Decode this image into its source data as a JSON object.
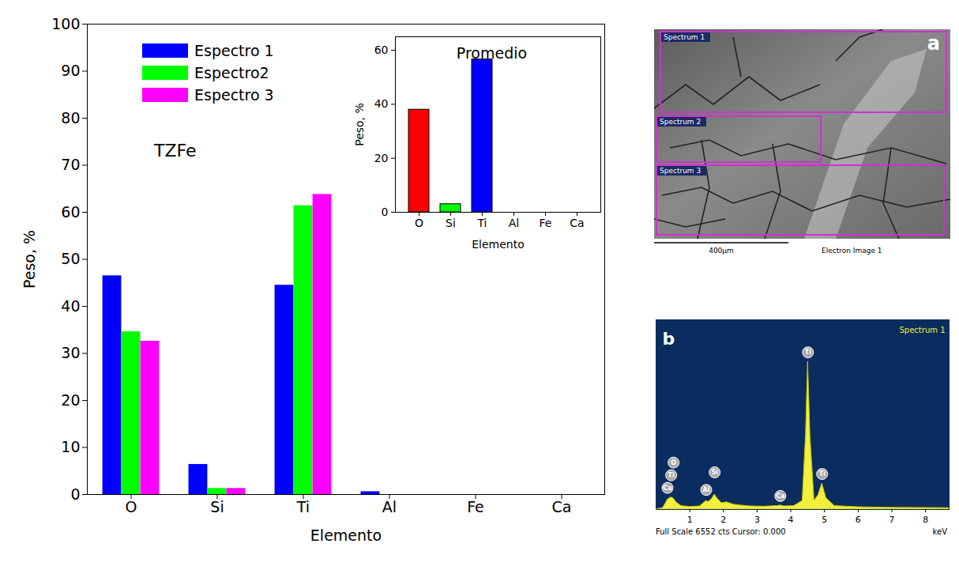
{
  "chart_data": [
    {
      "type": "bar",
      "annotation": "TZFe",
      "x_label": "Elemento",
      "y_label": "Peso, %",
      "categories": [
        "O",
        "Si",
        "Ti",
        "Al",
        "Fe",
        "Ca"
      ],
      "series": [
        {
          "name": "Espectro 1",
          "color": "#0000ff",
          "values": [
            46.5,
            6.4,
            44.5,
            0.6,
            0,
            0
          ]
        },
        {
          "name": "Espectro2",
          "color": "#00ff00",
          "values": [
            34.6,
            1.3,
            61.4,
            0,
            0,
            0
          ]
        },
        {
          "name": "Espectro 3",
          "color": "#ff00ff",
          "values": [
            32.6,
            1.3,
            63.8,
            0,
            0,
            0
          ]
        }
      ],
      "ylim": [
        0,
        100
      ],
      "yticks": [
        0,
        10,
        20,
        30,
        40,
        50,
        60,
        70,
        80,
        90,
        100
      ],
      "legend": "upper left"
    },
    {
      "type": "bar",
      "title": "Promedio",
      "x_label": "Elemento",
      "y_label": "Peso, %",
      "categories": [
        "O",
        "Si",
        "Ti",
        "Al",
        "Fe",
        "Ca"
      ],
      "values": [
        38,
        3,
        56.6,
        0,
        0,
        0
      ],
      "colors": [
        "#ff0000",
        "#00ff00",
        "#0000ff",
        "#000000",
        "#000000",
        "#000000"
      ],
      "ylim": [
        0,
        65
      ],
      "yticks": [
        0,
        20,
        40,
        60
      ]
    },
    {
      "type": "area",
      "panel": "b",
      "title": "Spectrum 1",
      "x_label": "keV",
      "footer": "Full Scale 6552 cts Cursor: 0.000",
      "x": [
        0,
        0.2,
        0.28,
        0.35,
        0.45,
        0.52,
        0.6,
        0.75,
        1.0,
        1.3,
        1.45,
        1.49,
        1.55,
        1.65,
        1.74,
        1.82,
        1.95,
        2.1,
        2.3,
        2.5,
        2.8,
        3.2,
        3.6,
        3.69,
        3.8,
        4.1,
        4.35,
        4.45,
        4.51,
        4.58,
        4.7,
        4.82,
        4.93,
        5.05,
        5.3,
        6,
        7,
        8.7
      ],
      "values": [
        0,
        50,
        200,
        350,
        420,
        380,
        250,
        120,
        90,
        110,
        250,
        300,
        260,
        350,
        520,
        380,
        220,
        250,
        170,
        140,
        110,
        100,
        120,
        140,
        110,
        120,
        300,
        2600,
        5100,
        2500,
        300,
        500,
        900,
        400,
        120,
        80,
        60,
        50
      ],
      "color": "#f2f03a",
      "xlim": [
        0,
        8.7
      ],
      "xticks": [
        1,
        2,
        3,
        4,
        5,
        6,
        7,
        8
      ],
      "ylim": [
        0,
        6552
      ],
      "tick_labels": "x",
      "peak_labels": [
        {
          "label": "O",
          "x": 0.52
        },
        {
          "label": "Ti",
          "x": 0.45
        },
        {
          "label": "Ca",
          "x": 0.34
        },
        {
          "label": "Al",
          "x": 1.49
        },
        {
          "label": "Si",
          "x": 1.74
        },
        {
          "label": "Ca",
          "x": 3.69
        },
        {
          "label": "Ti",
          "x": 4.51
        },
        {
          "label": "Ti",
          "x": 4.93
        }
      ]
    },
    {
      "type": "image",
      "panel": "a",
      "regions": [
        "Spectrum 1",
        "Spectrum 2",
        "Spectrum 3"
      ],
      "scale_bar": "400µm",
      "caption": "Electron Image 1"
    }
  ]
}
